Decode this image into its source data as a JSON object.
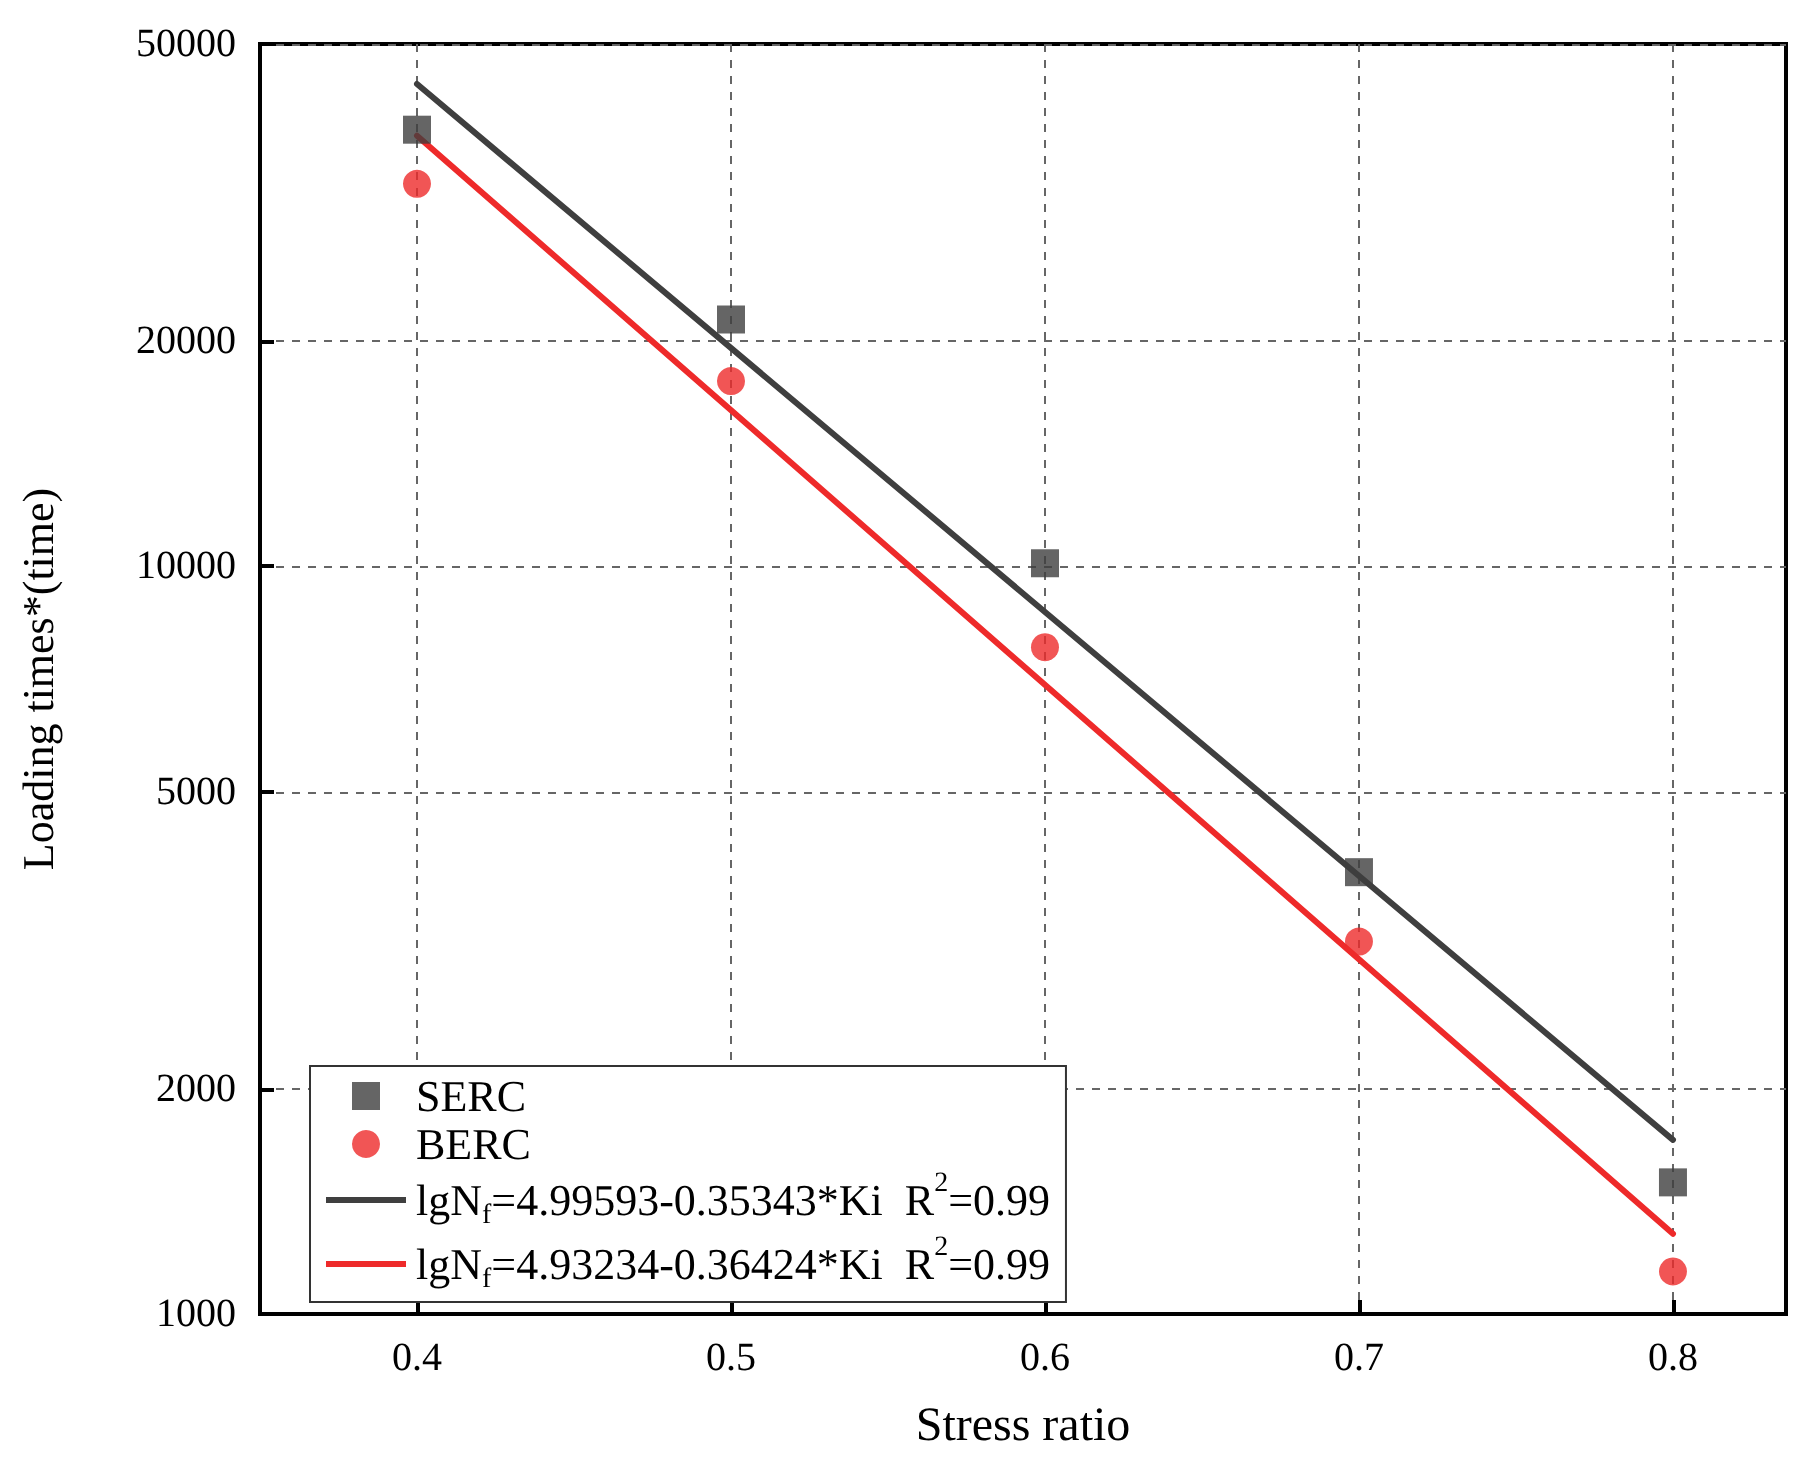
{
  "chart_data": {
    "type": "scatter",
    "xlabel": "Stress ratio",
    "ylabel": "Loading times*(time)",
    "xlim": [
      0.35,
      0.836
    ],
    "xticks": [
      0.4,
      0.5,
      0.6,
      0.7,
      0.8
    ],
    "ylim": [
      1000,
      50000
    ],
    "yticks": [
      1000,
      2000,
      5000,
      10000,
      20000,
      50000
    ],
    "log": "y",
    "grid": true,
    "legend": "bottom left",
    "series": [
      {
        "name": "SERC",
        "type": "scatter",
        "marker": "square",
        "color": "#3f3f3f",
        "x": [
          0.4,
          0.5,
          0.6,
          0.7,
          0.8
        ],
        "values": [
          38400,
          21400,
          10100,
          3900,
          1500
        ]
      },
      {
        "name": "BERC",
        "type": "scatter",
        "marker": "circle",
        "color": "#ee2a2a",
        "x": [
          0.4,
          0.5,
          0.6,
          0.7,
          0.8
        ],
        "values": [
          32500,
          17700,
          7800,
          3150,
          1140
        ]
      },
      {
        "name": "lgN$_{f}$=4.99593-0.35343*Ki  R$^{2}$=0.99",
        "type": "line",
        "marker": "none",
        "color": "#3f3f3f",
        "x": [
          0.4,
          0.8
        ],
        "values": [
          44200,
          1710
        ]
      },
      {
        "name": "lgN$_{f}$=4.93234-0.36424*Ki  R$^{2}$=0.99",
        "type": "line",
        "marker": "none",
        "color": "#ee2a2a",
        "x": [
          0.4,
          0.8
        ],
        "values": [
          37700,
          1280
        ]
      }
    ]
  }
}
